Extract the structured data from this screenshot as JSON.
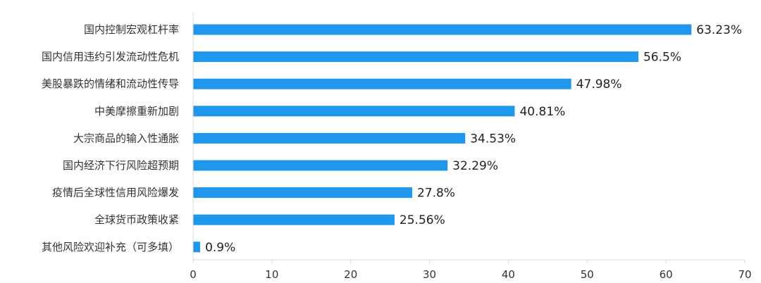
{
  "chart_data": {
    "type": "bar",
    "orientation": "horizontal",
    "categories": [
      "国内控制宏观杠杆率",
      "国内信用违约引发流动性危机",
      "美股暴跌的情绪和流动性传导",
      "中美摩擦重新加剧",
      "大宗商品的输入性通胀",
      "国内经济下行风险超预期",
      "疫情后全球性信用风险爆发",
      "全球货币政策收紧",
      "其他风险欢迎补充（可多填）"
    ],
    "values": [
      63.23,
      56.5,
      47.98,
      40.81,
      34.53,
      32.29,
      27.8,
      25.56,
      0.9
    ],
    "value_labels": [
      "63.23%",
      "56.5%",
      "47.98%",
      "40.81%",
      "34.53%",
      "32.29%",
      "27.8%",
      "25.56%",
      "0.9%"
    ],
    "xlim": [
      0,
      70
    ],
    "xticks": [
      0,
      10,
      20,
      30,
      40,
      50,
      60,
      70
    ],
    "xtick_labels": [
      "0",
      "10",
      "20",
      "30",
      "40",
      "50",
      "60",
      "70"
    ],
    "grid": false,
    "colors": {
      "bar": "#1f97ec",
      "axis": "#d9d9d9",
      "text": "#333333"
    }
  }
}
